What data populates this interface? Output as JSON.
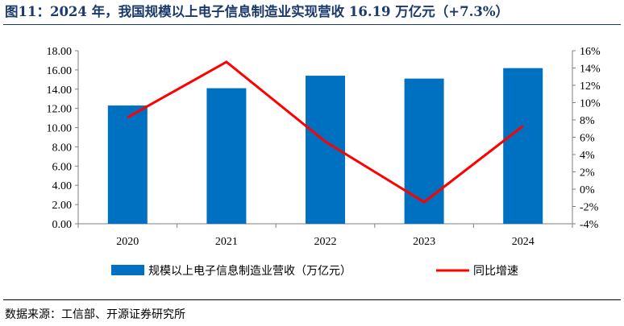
{
  "title": "图11：2024 年，我国规模以上电子信息制造业实现营收 16.19 万亿元（+7.3%）",
  "source": "数据来源：工信部、开源证券研究所",
  "chart_data": {
    "type": "bar",
    "categories": [
      "2020",
      "2021",
      "2022",
      "2023",
      "2024"
    ],
    "series": [
      {
        "name": "规模以上电子信息制造业营收（万亿元）",
        "type": "bar",
        "axis": "left",
        "color": "#0070c0",
        "values": [
          12.3,
          14.1,
          15.4,
          15.1,
          16.19
        ]
      },
      {
        "name": "同比增速",
        "type": "line",
        "axis": "right",
        "color": "#ff0000",
        "values": [
          8.3,
          14.7,
          5.5,
          -1.5,
          7.3
        ]
      }
    ],
    "left_axis": {
      "min": 0,
      "max": 18,
      "step": 2,
      "tick_labels": [
        "0.00",
        "2.00",
        "4.00",
        "6.00",
        "8.00",
        "10.00",
        "12.00",
        "14.00",
        "16.00",
        "18.00"
      ]
    },
    "right_axis": {
      "min": -4,
      "max": 16,
      "step": 2,
      "tick_labels": [
        "-4%",
        "-2%",
        "0%",
        "2%",
        "4%",
        "6%",
        "8%",
        "10%",
        "12%",
        "14%",
        "16%"
      ]
    },
    "grid": false,
    "legend_position": "bottom"
  }
}
